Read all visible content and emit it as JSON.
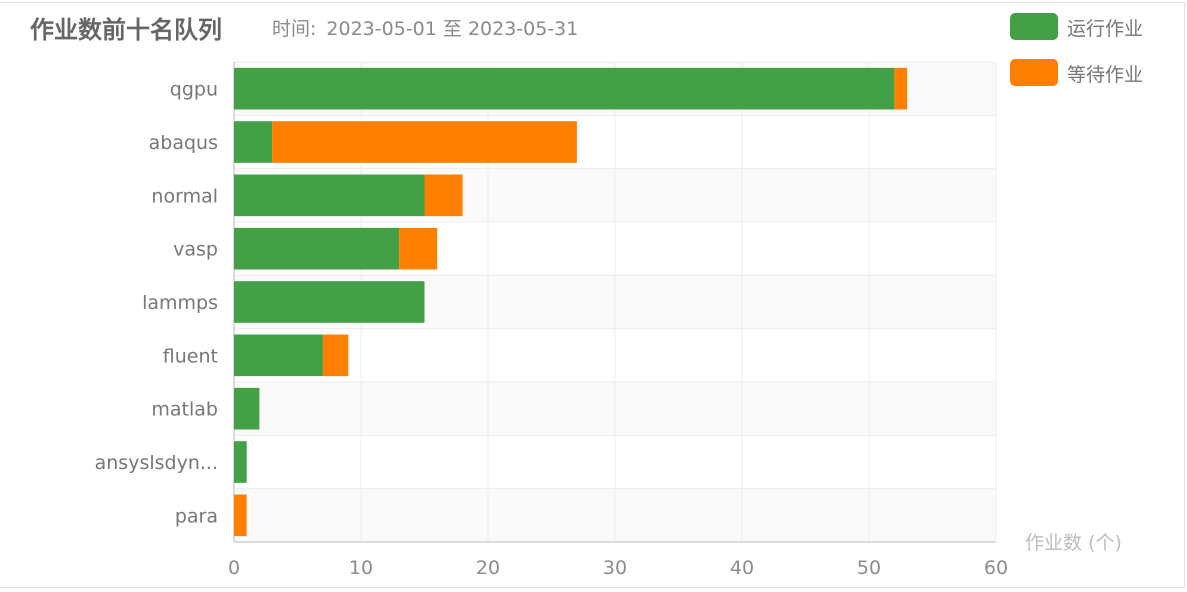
{
  "header": {
    "title": "作业数前十名队列",
    "time_label": "时间:",
    "start_date": "2023-05-01",
    "range_sep": "至",
    "end_date": "2023-05-31"
  },
  "colors": {
    "running": "#43a047",
    "waiting": "#ff8000",
    "grid": "#ececec",
    "axis": "#d0d0d0"
  },
  "chart_data": {
    "type": "bar",
    "orientation": "horizontal",
    "stacked": true,
    "categories": [
      "qgpu",
      "abaqus",
      "normal",
      "vasp",
      "lammps",
      "fluent",
      "matlab",
      "ansyslsdyn...",
      "para"
    ],
    "series": [
      {
        "name": "运行作业",
        "values": [
          52,
          3,
          15,
          13,
          15,
          7,
          2,
          1,
          0
        ]
      },
      {
        "name": "等待作业",
        "values": [
          1,
          24,
          3,
          3,
          0,
          2,
          0,
          0,
          1
        ]
      }
    ],
    "xlim": [
      0,
      60
    ],
    "xticks": [
      0,
      10,
      20,
      30,
      40,
      50,
      60
    ],
    "xlabel": "作业数 (个)",
    "grid": true,
    "legend_position": "top-right"
  }
}
